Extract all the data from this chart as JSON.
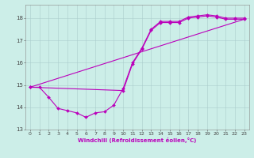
{
  "xlabel": "Windchill (Refroidissement éolien,°C)",
  "background_color": "#cceee8",
  "grid_color": "#aacccc",
  "line_color": "#bb00bb",
  "xlim": [
    -0.5,
    23.5
  ],
  "ylim": [
    13.0,
    18.6
  ],
  "yticks": [
    13,
    14,
    15,
    16,
    17,
    18
  ],
  "xticks": [
    0,
    1,
    2,
    3,
    4,
    5,
    6,
    7,
    8,
    9,
    10,
    11,
    12,
    13,
    14,
    15,
    16,
    17,
    18,
    19,
    20,
    21,
    22,
    23
  ],
  "line1_x": [
    0,
    1,
    2,
    3,
    4,
    5,
    6,
    7,
    8,
    9,
    10,
    11,
    12,
    13,
    14,
    15,
    16,
    17,
    18,
    19,
    20,
    21,
    22,
    23
  ],
  "line1_y": [
    14.9,
    14.9,
    14.45,
    13.95,
    13.85,
    13.75,
    13.55,
    13.75,
    13.8,
    14.1,
    14.85,
    16.0,
    16.65,
    17.5,
    17.85,
    17.85,
    17.85,
    18.05,
    18.1,
    18.15,
    18.1,
    18.0,
    18.0,
    18.0
  ],
  "line2_x": [
    0,
    10,
    11,
    12,
    13,
    14,
    15,
    16,
    17,
    18,
    19,
    20,
    21,
    22,
    23
  ],
  "line2_y": [
    14.9,
    14.75,
    15.95,
    16.6,
    17.45,
    17.8,
    17.8,
    17.8,
    18.0,
    18.05,
    18.1,
    18.05,
    17.95,
    17.95,
    17.95
  ],
  "line3_x": [
    0,
    23
  ],
  "line3_y": [
    14.9,
    17.95
  ],
  "xlabel_fontsize": 5.0,
  "tick_fontsize": 4.5,
  "linewidth": 0.8,
  "markersize": 2.0
}
